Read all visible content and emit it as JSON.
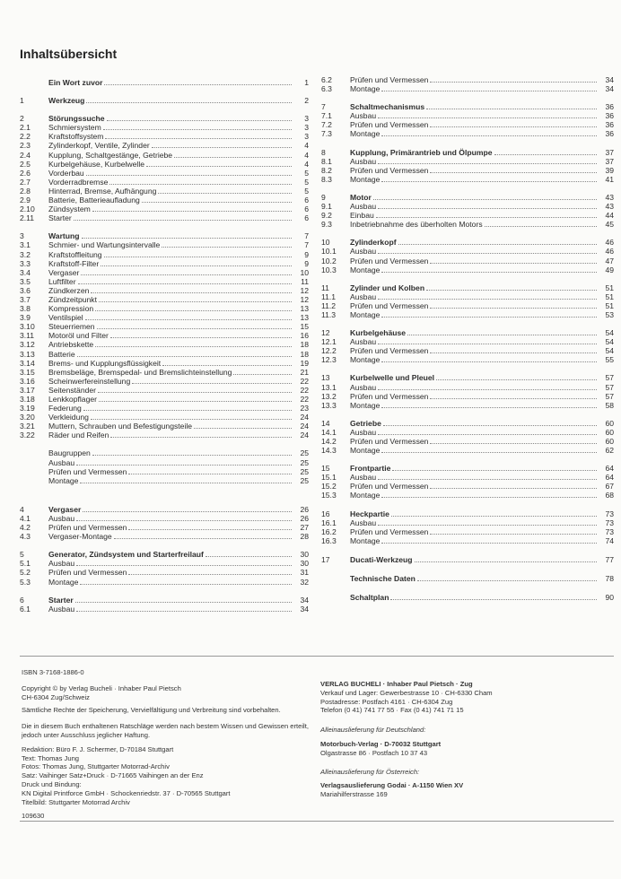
{
  "title": "Inhaltsübersicht",
  "left_column": [
    [
      {
        "num": "",
        "label": "Ein Wort zuvor",
        "page": "1",
        "bold": true
      }
    ],
    [
      {
        "num": "1",
        "label": "Werkzeug",
        "page": "2",
        "bold": true
      }
    ],
    [
      {
        "num": "2",
        "label": "Störungssuche",
        "page": "3",
        "bold": true
      },
      {
        "num": "2.1",
        "label": "Schmiersystem",
        "page": "3"
      },
      {
        "num": "2.2",
        "label": "Kraftstoffsystem",
        "page": "3"
      },
      {
        "num": "2.3",
        "label": "Zylinderkopf, Ventile, Zylinder",
        "page": "4"
      },
      {
        "num": "2.4",
        "label": "Kupplung, Schaltgestänge, Getriebe",
        "page": "4"
      },
      {
        "num": "2.5",
        "label": "Kurbelgehäuse, Kurbelwelle",
        "page": "4"
      },
      {
        "num": "2.6",
        "label": "Vorderbau",
        "page": "5"
      },
      {
        "num": "2.7",
        "label": "Vorderradbremse",
        "page": "5"
      },
      {
        "num": "2.8",
        "label": "Hinterrad, Bremse, Aufhängung",
        "page": "5"
      },
      {
        "num": "2.9",
        "label": "Batterie, Batterieaufladung",
        "page": "6"
      },
      {
        "num": "2.10",
        "label": "Zündsystem",
        "page": "6"
      },
      {
        "num": "2.11",
        "label": "Starter",
        "page": "6"
      }
    ],
    [
      {
        "num": "3",
        "label": "Wartung",
        "page": "7",
        "bold": true
      },
      {
        "num": "3.1",
        "label": "Schmier- und Wartungsintervalle",
        "page": "7"
      },
      {
        "num": "3.2",
        "label": "Kraftstoffleitung",
        "page": "9"
      },
      {
        "num": "3.3",
        "label": "Kraftstoff-Filter",
        "page": "9"
      },
      {
        "num": "3.4",
        "label": "Vergaser",
        "page": "10"
      },
      {
        "num": "3.5",
        "label": "Luftfilter",
        "page": "11"
      },
      {
        "num": "3.6",
        "label": "Zündkerzen",
        "page": "12"
      },
      {
        "num": "3.7",
        "label": "Zündzeitpunkt",
        "page": "12"
      },
      {
        "num": "3.8",
        "label": "Kompression",
        "page": "13"
      },
      {
        "num": "3.9",
        "label": "Ventilspiel",
        "page": "13"
      },
      {
        "num": "3.10",
        "label": "Steuerriemen",
        "page": "15"
      },
      {
        "num": "3.11",
        "label": "Motoröl und Filter",
        "page": "16"
      },
      {
        "num": "3.12",
        "label": "Antriebskette",
        "page": "18"
      },
      {
        "num": "3.13",
        "label": "Batterie",
        "page": "18"
      },
      {
        "num": "3.14",
        "label": "Brems- und Kupplungsflüssigkeit",
        "page": "19"
      },
      {
        "num": "3.15",
        "label": "Bremsbeläge, Bremspedal- und Bremslichteinstellung",
        "page": "21"
      },
      {
        "num": "3.16",
        "label": "Scheinwerfereinstellung",
        "page": "22"
      },
      {
        "num": "3.17",
        "label": "Seitenständer",
        "page": "22"
      },
      {
        "num": "3.18",
        "label": "Lenkkopflager",
        "page": "22"
      },
      {
        "num": "3.19",
        "label": "Federung",
        "page": "23"
      },
      {
        "num": "3.20",
        "label": "Verkleidung",
        "page": "24"
      },
      {
        "num": "3.21",
        "label": "Muttern, Schrauben und Befestigungsteile",
        "page": "24"
      },
      {
        "num": "3.22",
        "label": "Räder und Reifen",
        "page": "24"
      }
    ],
    [
      {
        "num": "",
        "label": "Baugruppen",
        "page": "25"
      },
      {
        "num": "",
        "label": "Ausbau",
        "page": "25"
      },
      {
        "num": "",
        "label": "Prüfen und Vermessen",
        "page": "25"
      },
      {
        "num": "",
        "label": "Montage",
        "page": "25"
      }
    ],
    [
      {
        "num": "4",
        "label": "Vergaser",
        "page": "26",
        "bold": true
      },
      {
        "num": "4.1",
        "label": "Ausbau",
        "page": "26"
      },
      {
        "num": "4.2",
        "label": "Prüfen und Vermessen",
        "page": "27"
      },
      {
        "num": "4.3",
        "label": "Vergaser-Montage",
        "page": "28"
      }
    ],
    [
      {
        "num": "5",
        "label": "Generator, Zündsystem und Starterfreilauf",
        "page": "30",
        "bold": true
      },
      {
        "num": "5.1",
        "label": "Ausbau",
        "page": "30"
      },
      {
        "num": "5.2",
        "label": "Prüfen und Vermessen",
        "page": "31"
      },
      {
        "num": "5.3",
        "label": "Montage",
        "page": "32"
      }
    ],
    [
      {
        "num": "6",
        "label": "Starter",
        "page": "34",
        "bold": true
      },
      {
        "num": "6.1",
        "label": "Ausbau",
        "page": "34"
      }
    ]
  ],
  "right_column": [
    [
      {
        "num": "6.2",
        "label": "Prüfen und Vermessen",
        "page": "34"
      },
      {
        "num": "6.3",
        "label": "Montage",
        "page": "34"
      }
    ],
    [
      {
        "num": "7",
        "label": "Schaltmechanismus",
        "page": "36",
        "bold": true
      },
      {
        "num": "7.1",
        "label": "Ausbau",
        "page": "36"
      },
      {
        "num": "7.2",
        "label": "Prüfen und Vermessen",
        "page": "36"
      },
      {
        "num": "7.3",
        "label": "Montage",
        "page": "36"
      }
    ],
    [
      {
        "num": "8",
        "label": "Kupplung, Primärantrieb und Ölpumpe",
        "page": "37",
        "bold": true
      },
      {
        "num": "8.1",
        "label": "Ausbau",
        "page": "37"
      },
      {
        "num": "8.2",
        "label": "Prüfen und Vermessen",
        "page": "39"
      },
      {
        "num": "8.3",
        "label": "Montage",
        "page": "41"
      }
    ],
    [
      {
        "num": "9",
        "label": "Motor",
        "page": "43",
        "bold": true
      },
      {
        "num": "9.1",
        "label": "Ausbau",
        "page": "43"
      },
      {
        "num": "9.2",
        "label": "Einbau",
        "page": "44"
      },
      {
        "num": "9.3",
        "label": "Inbetriebnahme des überholten Motors",
        "page": "45"
      }
    ],
    [
      {
        "num": "10",
        "label": "Zylinderkopf",
        "page": "46",
        "bold": true
      },
      {
        "num": "10.1",
        "label": "Ausbau",
        "page": "46"
      },
      {
        "num": "10.2",
        "label": "Prüfen und Vermessen",
        "page": "47"
      },
      {
        "num": "10.3",
        "label": "Montage",
        "page": "49"
      }
    ],
    [
      {
        "num": "11",
        "label": "Zylinder und Kolben",
        "page": "51",
        "bold": true
      },
      {
        "num": "11.1",
        "label": "Ausbau",
        "page": "51"
      },
      {
        "num": "11.2",
        "label": "Prüfen und Vermessen",
        "page": "51"
      },
      {
        "num": "11.3",
        "label": "Montage",
        "page": "53"
      }
    ],
    [
      {
        "num": "12",
        "label": "Kurbelgehäuse",
        "page": "54",
        "bold": true
      },
      {
        "num": "12.1",
        "label": "Ausbau",
        "page": "54"
      },
      {
        "num": "12.2",
        "label": "Prüfen und Vermessen",
        "page": "54"
      },
      {
        "num": "12.3",
        "label": "Montage",
        "page": "55"
      }
    ],
    [
      {
        "num": "13",
        "label": "Kurbelwelle und Pleuel",
        "page": "57",
        "bold": true
      },
      {
        "num": "13.1",
        "label": "Ausbau",
        "page": "57"
      },
      {
        "num": "13.2",
        "label": "Prüfen und Vermessen",
        "page": "57"
      },
      {
        "num": "13.3",
        "label": "Montage",
        "page": "58"
      }
    ],
    [
      {
        "num": "14",
        "label": "Getriebe",
        "page": "60",
        "bold": true
      },
      {
        "num": "14.1",
        "label": "Ausbau",
        "page": "60"
      },
      {
        "num": "14.2",
        "label": "Prüfen und Vermessen",
        "page": "60"
      },
      {
        "num": "14.3",
        "label": "Montage",
        "page": "62"
      }
    ],
    [
      {
        "num": "15",
        "label": "Frontpartie",
        "page": "64",
        "bold": true
      },
      {
        "num": "15.1",
        "label": "Ausbau",
        "page": "64"
      },
      {
        "num": "15.2",
        "label": "Prüfen und Vermessen",
        "page": "67"
      },
      {
        "num": "15.3",
        "label": "Montage",
        "page": "68"
      }
    ],
    [
      {
        "num": "16",
        "label": "Heckpartie",
        "page": "73",
        "bold": true
      },
      {
        "num": "16.1",
        "label": "Ausbau",
        "page": "73"
      },
      {
        "num": "16.2",
        "label": "Prüfen und Vermessen",
        "page": "73"
      },
      {
        "num": "16.3",
        "label": "Montage",
        "page": "74"
      }
    ],
    [
      {
        "num": "17",
        "label": "Ducati-Werkzeug",
        "page": "77",
        "bold": true
      }
    ],
    [
      {
        "num": "",
        "label": "Technische Daten",
        "page": "78",
        "bold": true
      }
    ],
    [
      {
        "num": "",
        "label": "Schaltplan",
        "page": "90",
        "bold": true
      }
    ]
  ],
  "imprint": {
    "isbn": "ISBN 3-7168-1886-0",
    "copyright": [
      "Copyright © by Verlag Bucheli · Inhaber Paul Pietsch",
      "CH-6304 Zug/Schweiz"
    ],
    "rights": "Sämtliche Rechte der Speicherung, Vervielfältigung und Verbreitung sind vorbehalten.",
    "disclaimer": [
      "Die in diesem Buch enthaltenen Ratschläge werden nach bestem Wissen und Gewissen erteilt,",
      "jedoch unter Ausschluss jeglicher Haftung."
    ],
    "credits": [
      "Redaktion: Büro F. J. Schermer, D-70184 Stuttgart",
      "Text: Thomas Jung",
      "Fotos: Thomas Jung, Stuttgarter Motorrad-Archiv",
      "Satz: Vaihinger Satz+Druck · D-71665 Vaihingen an der Enz",
      "Druck und Bindung:",
      "KN Digital Printforce GmbH · Schockenriedstr. 37 · D-70565 Stuttgart",
      "Titelbild: Stuttgarter Motorrad Archiv"
    ],
    "code": "109630"
  },
  "publisher": {
    "name": "VERLAG BUCHELI · Inhaber Paul Pietsch · Zug",
    "lines": [
      "Verkauf und Lager: Gewerbestrasse 10 · CH-6330 Cham",
      "Postadresse: Postfach 4161 · CH-6304 Zug",
      "Telefon (0 41) 741 77 55 · Fax (0 41) 741 71 15"
    ],
    "de_heading": "Alleinauslieferung für Deutschland:",
    "de_name": "Motorbuch-Verlag · D-70032 Stuttgart",
    "de_address": "Olgastrasse 86 · Postfach 10 37 43",
    "at_heading": "Alleinauslieferung für Österreich:",
    "at_name": "Verlagsauslieferung Godai · A-1150 Wien XV",
    "at_address": "Mariahilferstrasse 169"
  }
}
